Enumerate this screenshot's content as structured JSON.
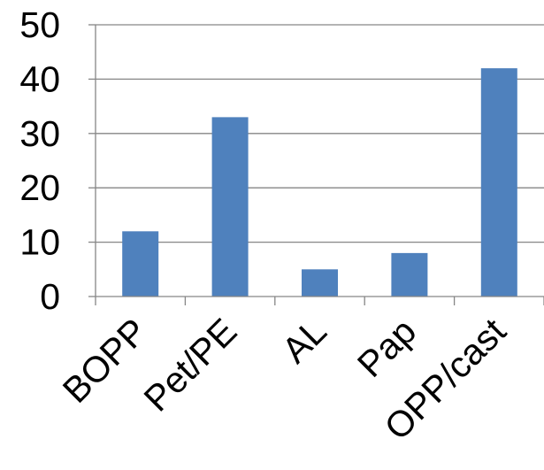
{
  "chart_data": {
    "type": "bar",
    "title": "",
    "xlabel": "",
    "ylabel": "",
    "categories": [
      "BOPP",
      "Pet/PE",
      "AL",
      "Pap",
      "OPP/cast"
    ],
    "values": [
      12,
      33,
      5,
      8,
      42
    ],
    "ylim": [
      0,
      50
    ],
    "yticks": [
      "0",
      "10",
      "20",
      "30",
      "40",
      "50"
    ],
    "grid": true,
    "legend": "none",
    "colors": {
      "bar": "#4F81BD",
      "grid": "#868686",
      "axis": "#868686",
      "text": "#000000"
    }
  }
}
